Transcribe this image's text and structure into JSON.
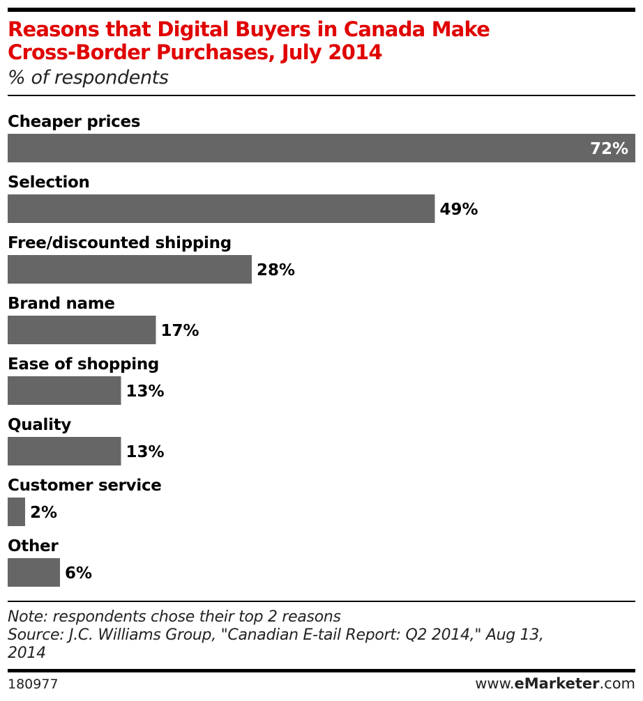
{
  "header": {
    "title_line1": "Reasons that Digital Buyers in Canada Make",
    "title_line2": "Cross-Border Purchases, July 2014",
    "subtitle": "% of respondents"
  },
  "chart_data": {
    "type": "bar",
    "orientation": "horizontal",
    "title": "Reasons that Digital Buyers in Canada Make Cross-Border Purchases, July 2014",
    "subtitle": "% of respondents",
    "categories": [
      "Cheaper prices",
      "Selection",
      "Free/discounted shipping",
      "Brand name",
      "Ease of shopping",
      "Quality",
      "Customer service",
      "Other"
    ],
    "values": [
      72,
      49,
      28,
      17,
      13,
      13,
      2,
      6
    ],
    "value_labels": [
      "72%",
      "49%",
      "28%",
      "17%",
      "13%",
      "13%",
      "2%",
      "6%"
    ],
    "unit": "%",
    "xlim": [
      0,
      72
    ],
    "grid": false,
    "legend": "none",
    "bar_color": "#666666"
  },
  "footer": {
    "note": "Note: respondents chose their top 2 reasons",
    "source_line1": "Source: J.C. Williams Group, \"Canadian E-tail Report: Q2 2014,\" Aug 13,",
    "source_line2": "2014",
    "chart_id": "180977",
    "brand_prefix": "www.",
    "brand_name": "eMarketer",
    "brand_suffix": ".com"
  },
  "colors": {
    "title": "#e00000",
    "bar": "#666666",
    "inside_label": "#ffffff",
    "outside_label": "#000000"
  }
}
